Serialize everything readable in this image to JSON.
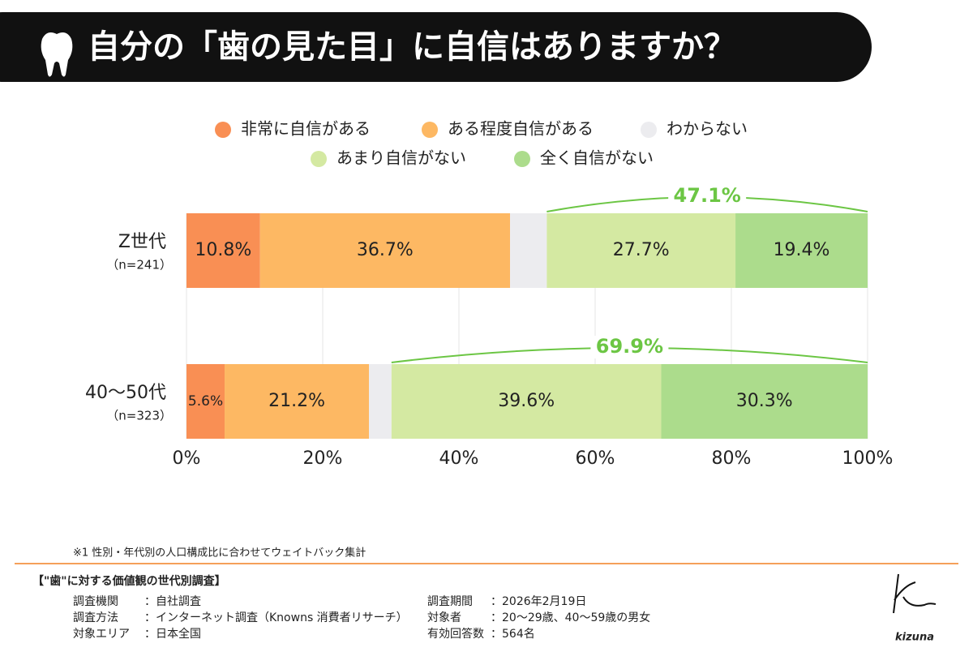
{
  "chart_data": {
    "type": "stacked-bar-horizontal",
    "title": "自分の「歯の見た目」に自信はありますか？",
    "categories": [
      "Z世代",
      "40〜50代"
    ],
    "category_notes": [
      "（n=241）",
      "（n=323）"
    ],
    "series": [
      {
        "name": "非常に自信がある",
        "color": "#f98f54",
        "values": [
          10.8,
          5.6
        ],
        "value_labels": [
          "10.8%",
          "5.6%"
        ]
      },
      {
        "name": "ある程度自信がある",
        "color": "#fdb863",
        "values": [
          36.7,
          21.2
        ],
        "value_labels": [
          "36.7%",
          "21.2%"
        ]
      },
      {
        "name": "わからない",
        "color": "#ececef",
        "values": [
          5.4,
          3.3
        ]
      },
      {
        "name": "あまり自信がない",
        "color": "#d4e9a2",
        "values": [
          27.7,
          39.6
        ],
        "value_labels": [
          "27.7%",
          "39.6%"
        ]
      },
      {
        "name": "全く自信がない",
        "color": "#acdc8c",
        "values": [
          19.4,
          30.3
        ],
        "value_labels": [
          "19.4%",
          "30.3%"
        ]
      }
    ],
    "brackets": [
      {
        "value": 47.1,
        "label": "47.1%"
      },
      {
        "value": 69.9,
        "label": "69.9%"
      }
    ],
    "bracket_color": "#6cc644",
    "xlim": [
      0,
      100
    ],
    "xticks": [
      {
        "value": 0,
        "label": "0%"
      },
      {
        "value": 20,
        "label": "20%"
      },
      {
        "value": 40,
        "label": "40%"
      },
      {
        "value": 60,
        "label": "60%"
      },
      {
        "value": 80,
        "label": "80%"
      },
      {
        "value": 100,
        "label": "100%"
      }
    ],
    "grid": true
  },
  "note": "※1 性別・年代別の人口構成比に合わせてウェイトバック集計",
  "survey": {
    "title": "【\"歯\"に対する価値観の世代別調査】",
    "left": [
      [
        "調査機関",
        "：自社調査"
      ],
      [
        "調査方法",
        "：インターネット調査（Knowns 消費者リサーチ）"
      ],
      [
        "対象エリア",
        "：日本全国"
      ]
    ],
    "right": [
      [
        "調査期間",
        "：2026年2月19日"
      ],
      [
        "対象者",
        "：20〜29歳、40〜59歳の男女"
      ],
      [
        "有効回答数",
        "：564名"
      ]
    ]
  },
  "logo": "kizuna"
}
